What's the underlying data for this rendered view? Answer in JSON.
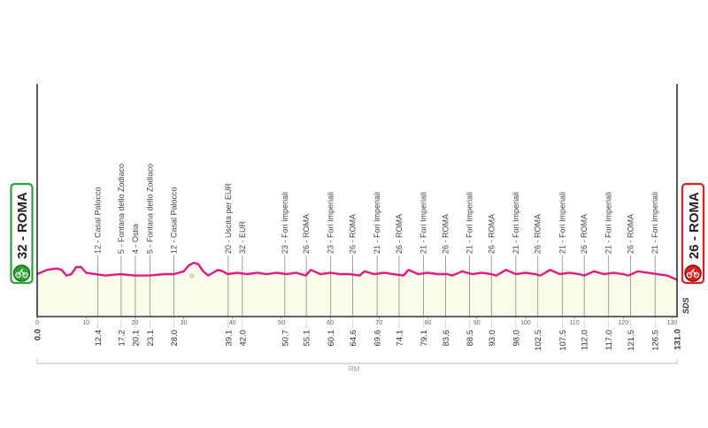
{
  "chart_data": {
    "type": "area",
    "xlabel": "",
    "ylabel": "",
    "xlim": [
      0,
      131
    ],
    "ylim": [
      0,
      60
    ],
    "grid": true,
    "x_ticks": [
      0,
      10,
      20,
      30,
      40,
      50,
      60,
      70,
      80,
      90,
      100,
      110,
      120,
      130
    ],
    "start": {
      "label": "32 - ROMA",
      "km": "0.0",
      "color": "#2aa532"
    },
    "finish": {
      "label": "26 - ROMA",
      "km": "131.0",
      "color": "#e0201b"
    },
    "region_label": "RM",
    "logo": "SDS",
    "line_color": "#e6197f",
    "fill_color": "#fbfbea",
    "profile": {
      "x": [
        0,
        2,
        4,
        5,
        6,
        7,
        8,
        9,
        10,
        12,
        14,
        17,
        20,
        23,
        26,
        28,
        30,
        31,
        32,
        33,
        34,
        35,
        36,
        37,
        38,
        39,
        41,
        43,
        45,
        47,
        49,
        51,
        53,
        55,
        56,
        58,
        60,
        62,
        64,
        66,
        67,
        69,
        71,
        73,
        75,
        76,
        78,
        80,
        82,
        84,
        85,
        87,
        89,
        91,
        93,
        94,
        96,
        98,
        100,
        102,
        103,
        105,
        107,
        109,
        111,
        112,
        114,
        116,
        118,
        120,
        121,
        123,
        125,
        127,
        129,
        131
      ],
      "y": [
        30,
        33,
        34,
        33,
        29,
        30,
        35,
        35,
        31,
        30,
        29,
        30,
        29,
        29,
        30,
        30,
        32,
        36,
        38,
        37,
        32,
        29,
        31,
        33,
        32,
        30,
        31,
        30,
        31,
        30,
        31,
        30,
        31,
        29,
        33,
        30,
        31,
        30,
        30,
        29,
        32,
        30,
        31,
        30,
        29,
        33,
        30,
        31,
        30,
        30,
        29,
        32,
        30,
        31,
        30,
        29,
        33,
        30,
        31,
        30,
        29,
        33,
        30,
        31,
        30,
        29,
        32,
        30,
        31,
        30,
        29,
        32,
        31,
        30,
        29,
        26
      ]
    },
    "waypoints": [
      {
        "km": "12.4",
        "label": "12 - Casal Palocco"
      },
      {
        "km": "17.2",
        "label": "5 - Fontana dello Zodiaco"
      },
      {
        "km": "20.1",
        "label": "4 - Ostia"
      },
      {
        "km": "23.1",
        "label": "5 - Fontana dello Zodiaco"
      },
      {
        "km": "28.0",
        "label": "12 - Casal Palocco"
      },
      {
        "km": "39.1",
        "label": "20 - Uscita per EUR"
      },
      {
        "km": "42.0",
        "label": "32 - EUR"
      },
      {
        "km": "50.7",
        "label": "23 - Fori Imperiali"
      },
      {
        "km": "55.1",
        "label": "26 - ROMA"
      },
      {
        "km": "60.1",
        "label": "23 - Fori Imperiali"
      },
      {
        "km": "64.6",
        "label": "26 - ROMA"
      },
      {
        "km": "69.6",
        "label": "21 - Fori Imperiali"
      },
      {
        "km": "74.1",
        "label": "26 - ROMA"
      },
      {
        "km": "79.1",
        "label": "21 - Fori Imperiali"
      },
      {
        "km": "83.6",
        "label": "26 - ROMA"
      },
      {
        "km": "88.5",
        "label": "21 - Fori Imperiali"
      },
      {
        "km": "93.0",
        "label": "26 - ROMA"
      },
      {
        "km": "98.0",
        "label": "21 - Fori Imperiali"
      },
      {
        "km": "102.5",
        "label": "26 - ROMA"
      },
      {
        "km": "107.5",
        "label": "21 - Fori Imperiali"
      },
      {
        "km": "112.0",
        "label": "26 - ROMA"
      },
      {
        "km": "117.0",
        "label": "21 - Fori Imperiali"
      },
      {
        "km": "121.5",
        "label": "26 - ROMA"
      },
      {
        "km": "126.5",
        "label": "21 - Fori Imperiali"
      }
    ]
  }
}
